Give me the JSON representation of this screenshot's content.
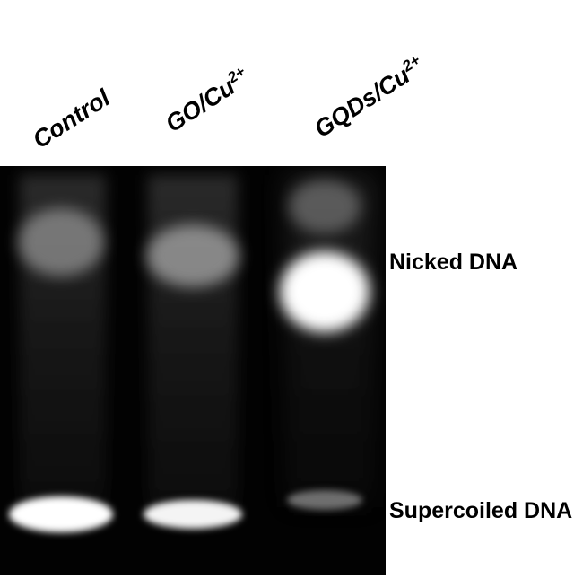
{
  "lanes": [
    {
      "label": "Control",
      "label_sup": ""
    },
    {
      "label": "GO/Cu",
      "label_sup": "2+"
    },
    {
      "label": "GQDs/Cu",
      "label_sup": "2+"
    }
  ],
  "bands": {
    "nicked": "Nicked DNA",
    "supercoiled": "Supercoiled DNA"
  },
  "colors": {
    "gel_background": "#020202",
    "band": "#ffffff",
    "label_text": "#000000"
  }
}
